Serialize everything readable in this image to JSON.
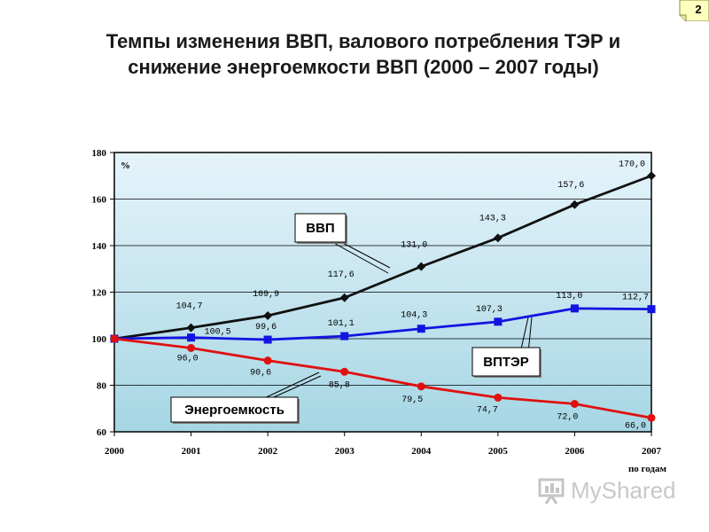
{
  "slide_number": "2",
  "title_line1": "Темпы изменения ВВП, валового потребления ТЭР и",
  "title_line2": "снижение энергоемкости ВВП (2000 – 2007 годы)",
  "watermark": {
    "icon": "presentation-board-icon",
    "text": "MyShared"
  },
  "colors": {
    "plot_bg_top": "#e6f4fb",
    "plot_bg_bottom": "#a6d6e4",
    "gdp": "#111111",
    "energy_use": "#1414e0",
    "energy_intensity": "#e01010"
  },
  "chart_data": {
    "type": "line",
    "title": "Темпы изменения ВВП, валового потребления ТЭР и снижение энергоемкости ВВП (2000 – 2007 годы)",
    "ylabel": "%",
    "xlabel": "по годам",
    "x": [
      "2000",
      "2001",
      "2002",
      "2003",
      "2004",
      "2005",
      "2006",
      "2007"
    ],
    "ylim": [
      60,
      180
    ],
    "yticks": [
      "60",
      "80",
      "100",
      "120",
      "140",
      "160",
      "180"
    ],
    "grid": true,
    "series": [
      {
        "name": "ВВП",
        "color": "#111111",
        "marker": "diamond",
        "values": [
          100,
          104.7,
          109.9,
          117.6,
          131.0,
          143.3,
          157.6,
          170.0
        ],
        "labels": [
          "",
          "104,7",
          "109,9",
          "117,6",
          "131,0",
          "143,3",
          "157,6",
          "170,0"
        ]
      },
      {
        "name": "ВПТЭР",
        "color": "#1414e0",
        "marker": "square",
        "values": [
          100,
          100.5,
          99.6,
          101.1,
          104.3,
          107.3,
          113.0,
          112.7
        ],
        "labels": [
          "",
          "100,5",
          "99,6",
          "101,1",
          "104,3",
          "107,3",
          "113,0",
          "112,7"
        ]
      },
      {
        "name": "Энергоемкость",
        "color": "#e01010",
        "marker": "circle",
        "values": [
          100,
          96.0,
          90.6,
          85.8,
          79.5,
          74.7,
          72.0,
          66.0
        ],
        "labels": [
          "",
          "96,0",
          "90,6",
          "85,8",
          "79,5",
          "74,7",
          "72,0",
          "66,0"
        ]
      }
    ]
  }
}
